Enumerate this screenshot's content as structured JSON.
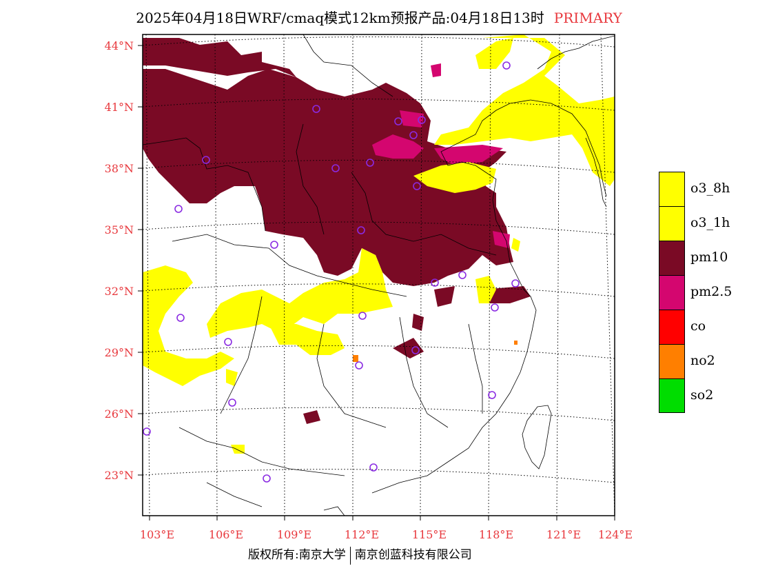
{
  "title": {
    "main": "2025年04月18日WRF/cmaq模式12km预报产品:04月18日13时",
    "tag": "PRIMARY"
  },
  "map": {
    "lat_labels": [
      "44°N",
      "41°N",
      "38°N",
      "35°N",
      "32°N",
      "29°N",
      "26°N",
      "23°N"
    ],
    "lon_labels": [
      "103°E",
      "106°E",
      "109°E",
      "112°E",
      "115°E",
      "118°E",
      "121°E",
      "124°E"
    ],
    "label_color": "#e8383d"
  },
  "legend": [
    {
      "label": "o3_8h",
      "color": "#ffff00"
    },
    {
      "label": "o3_1h",
      "color": "#ffff00"
    },
    {
      "label": "pm10",
      "color": "#7a0a25"
    },
    {
      "label": "pm2.5",
      "color": "#d4066f"
    },
    {
      "label": "co",
      "color": "#ff0000"
    },
    {
      "label": "no2",
      "color": "#ff7f00"
    },
    {
      "label": "so2",
      "color": "#00dd00"
    }
  ],
  "footer": {
    "left": "版权所有:南京大学",
    "right": "南京创蓝科技有限公司"
  },
  "station_marker_color": "#8a2be2"
}
